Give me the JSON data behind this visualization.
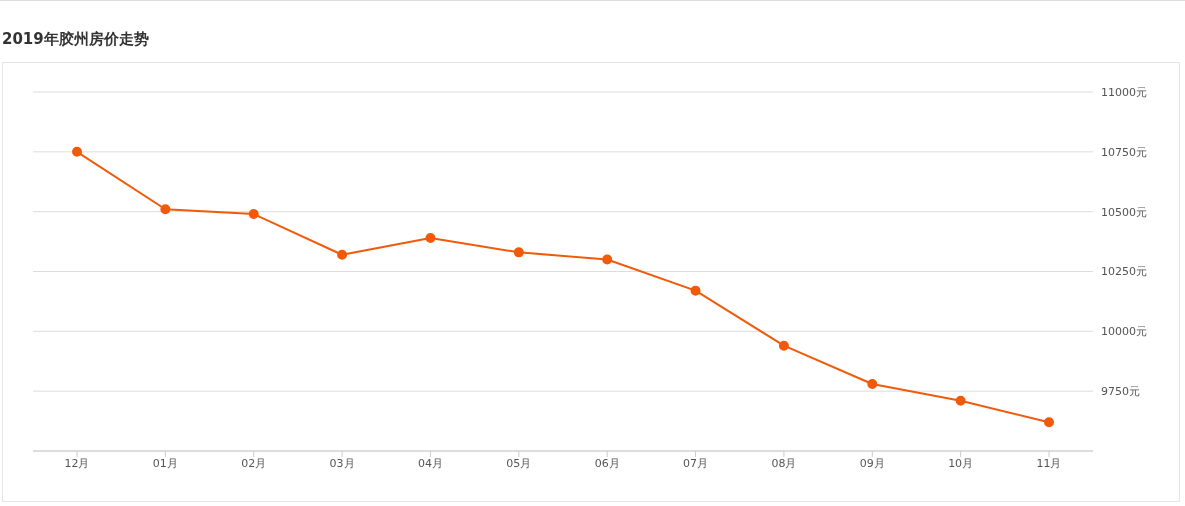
{
  "chart_data": {
    "type": "line",
    "title": "2019年胶州房价走势",
    "categories": [
      "12月",
      "01月",
      "02月",
      "03月",
      "04月",
      "05月",
      "06月",
      "07月",
      "08月",
      "09月",
      "10月",
      "11月"
    ],
    "series": [
      {
        "color": "#f15a0a",
        "values": [
          10750,
          10510,
          10490,
          10320,
          10390,
          10330,
          10300,
          10170,
          9940,
          9780,
          9710,
          9620
        ]
      }
    ],
    "ylim": [
      9500,
      11000
    ],
    "yticks": [
      {
        "value": 9750,
        "label": "9750元"
      },
      {
        "value": 10000,
        "label": "10000元"
      },
      {
        "value": 10250,
        "label": "10250元"
      },
      {
        "value": 10500,
        "label": "10500元"
      },
      {
        "value": 10750,
        "label": "10750元"
      },
      {
        "value": 11000,
        "label": "11000元"
      }
    ],
    "grid": "y",
    "marker": "circle",
    "line_style": "solid",
    "legend": false
  }
}
